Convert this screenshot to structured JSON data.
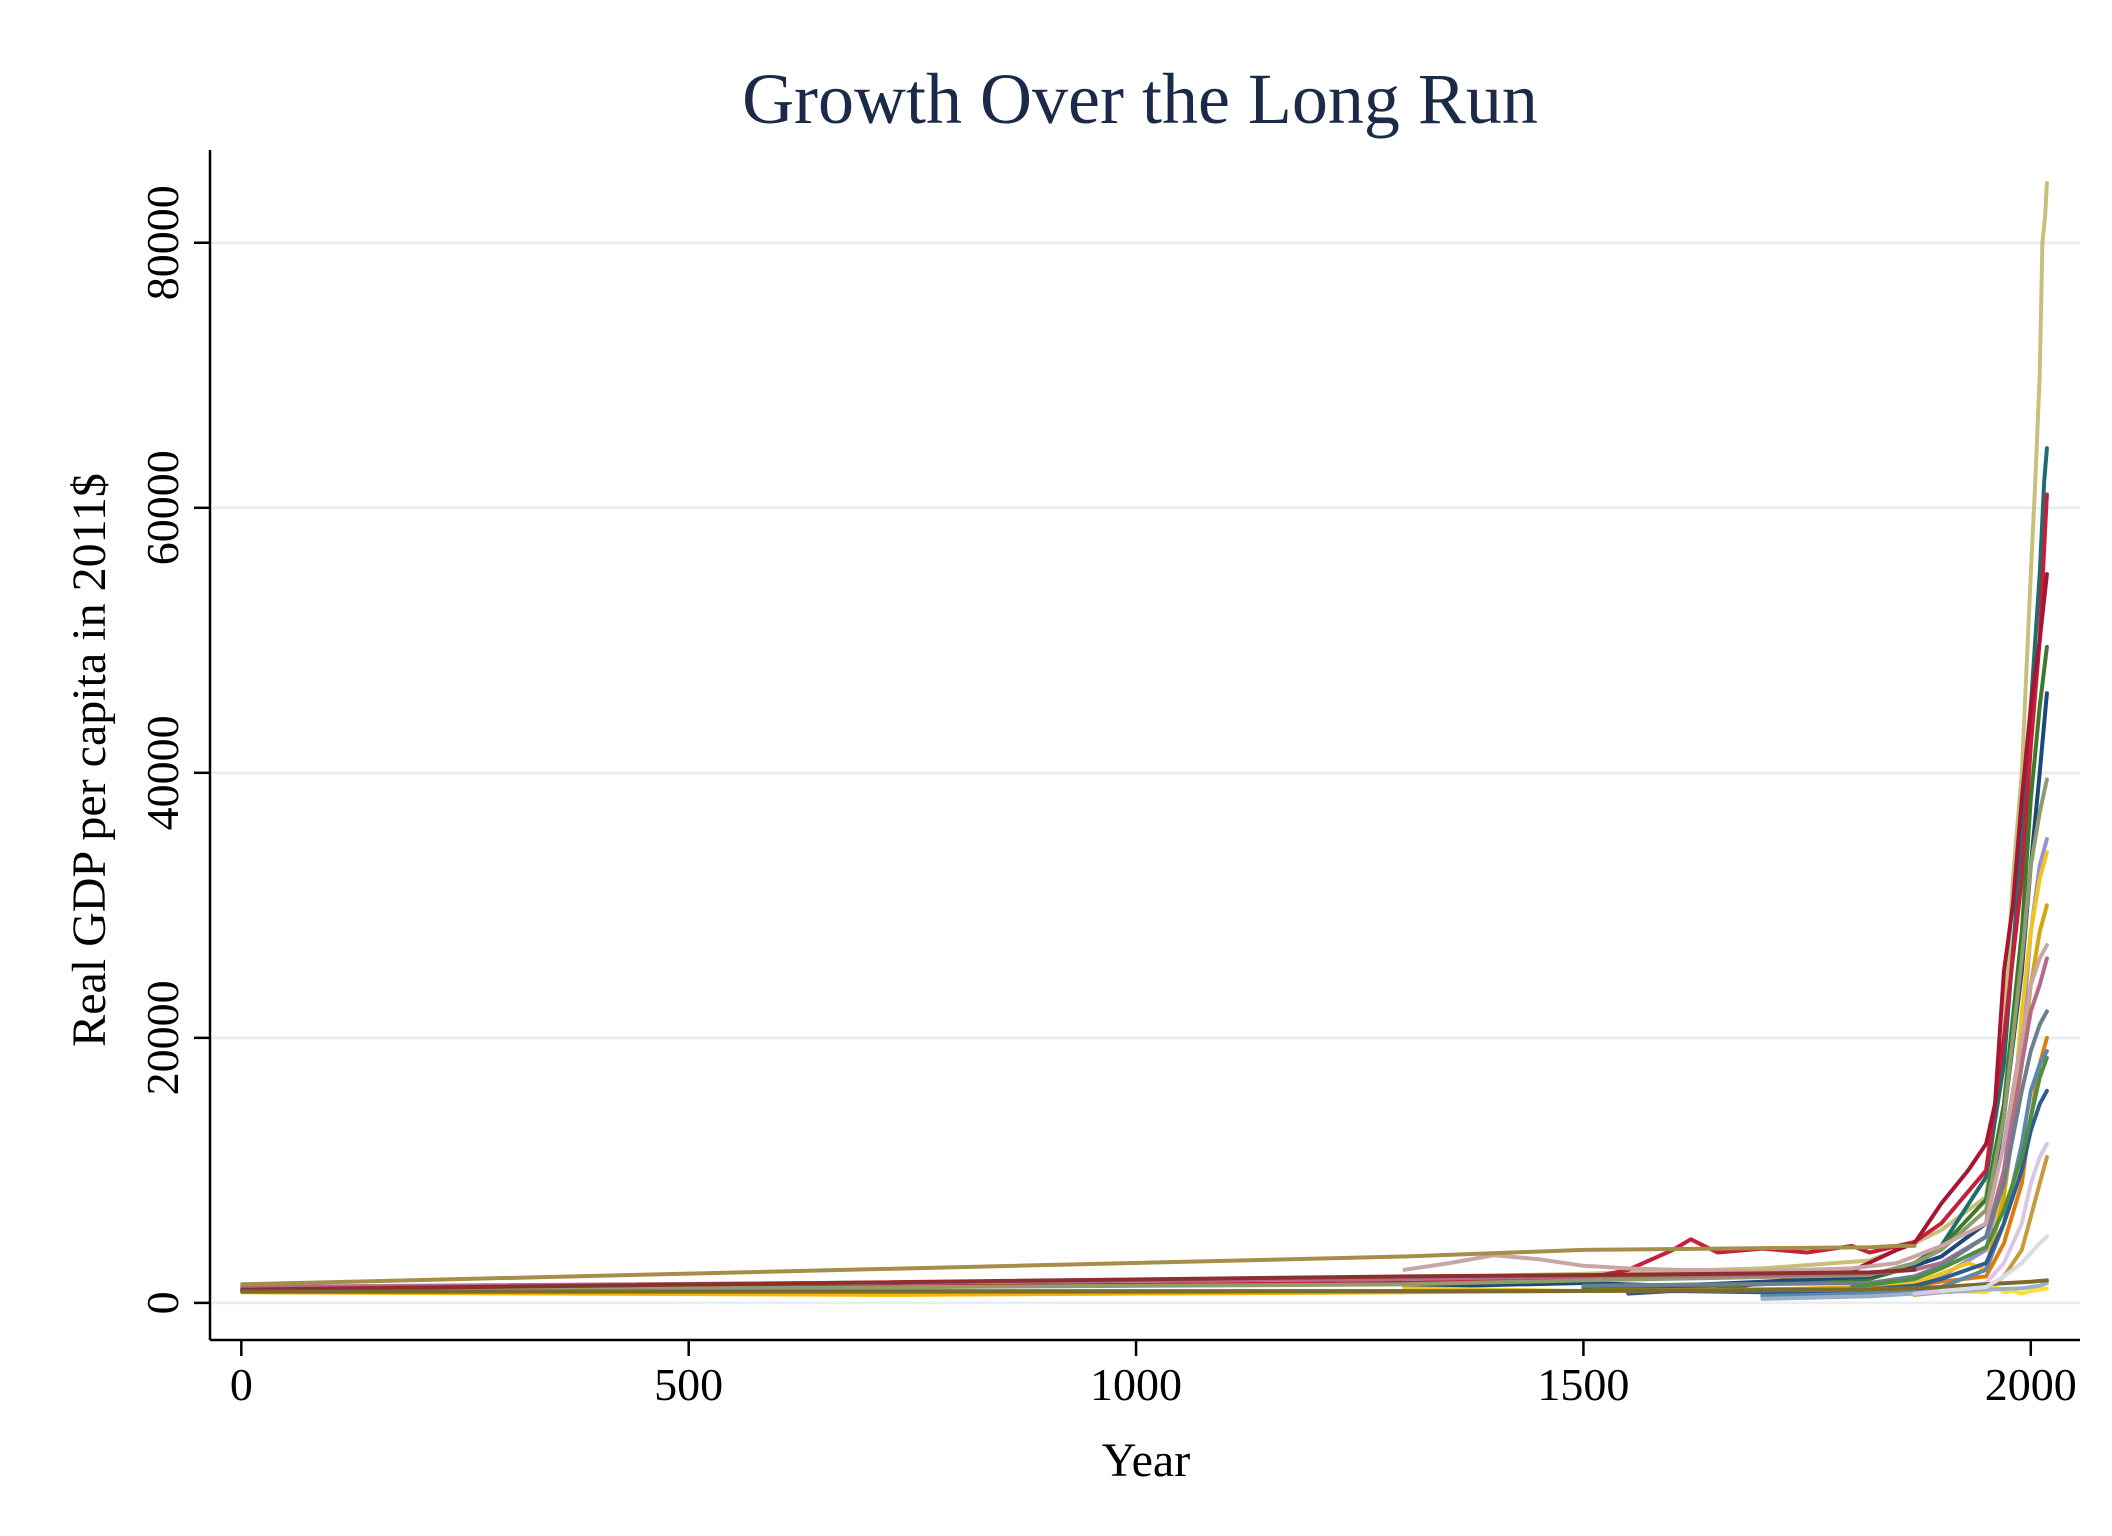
{
  "chart_data": {
    "type": "line",
    "title": "Growth Over the Long Run",
    "xlabel": "Year",
    "ylabel": "Real GDP per capita in 2011$",
    "xlim": [
      -35,
      2055
    ],
    "ylim": [
      -2800,
      87000
    ],
    "x_ticks": [
      0,
      500,
      1000,
      1500,
      2000
    ],
    "y_ticks": [
      0,
      20000,
      40000,
      60000,
      80000
    ],
    "grid": true,
    "legend": "none",
    "series": [
      {
        "color": "#c8c07a",
        "x": [
          1,
          1300,
          1500,
          1700,
          1820,
          1870,
          1900,
          1950,
          1970,
          1980,
          1990,
          2000,
          2005,
          2010,
          2013,
          2016,
          2018
        ],
        "y": [
          1100,
          1900,
          2200,
          2600,
          3200,
          4500,
          5500,
          8000,
          20000,
          32000,
          40000,
          55000,
          62000,
          70000,
          80000,
          82000,
          84500
        ]
      },
      {
        "color": "#1e6e6e",
        "x": [
          1500,
          1700,
          1820,
          1870,
          1900,
          1950,
          1970,
          1990,
          2000,
          2010,
          2015,
          2018
        ],
        "y": [
          1200,
          1500,
          2000,
          3000,
          4300,
          9500,
          18000,
          35000,
          45000,
          55000,
          62000,
          64500
        ]
      },
      {
        "color": "#c41f3b",
        "x": [
          1,
          1300,
          1500,
          1550,
          1600,
          1620,
          1650,
          1700,
          1750,
          1800,
          1820,
          1870,
          1900,
          1950,
          1970,
          1990,
          2000,
          2010,
          2015,
          2018
        ],
        "y": [
          900,
          1500,
          1800,
          2500,
          4000,
          4800,
          3800,
          4100,
          3800,
          4300,
          3800,
          4600,
          6000,
          10000,
          20000,
          32000,
          42000,
          50000,
          57000,
          61000
        ]
      },
      {
        "color": "#a81431",
        "x": [
          1650,
          1700,
          1800,
          1850,
          1870,
          1900,
          1930,
          1950,
          1960,
          1970,
          1980,
          1990,
          2000,
          2010,
          2018
        ],
        "y": [
          1000,
          1500,
          2400,
          4000,
          4500,
          7500,
          10000,
          12000,
          15000,
          25000,
          30000,
          38000,
          45000,
          50000,
          55000
        ]
      },
      {
        "color": "#3d7a2e",
        "x": [
          1500,
          1700,
          1820,
          1870,
          1900,
          1950,
          1970,
          1990,
          2000,
          2010,
          2018
        ],
        "y": [
          1000,
          1400,
          1800,
          2800,
          4200,
          7800,
          15000,
          28000,
          38000,
          45000,
          49500
        ]
      },
      {
        "color": "#1a4a7a",
        "x": [
          1300,
          1500,
          1600,
          1700,
          1820,
          1870,
          1900,
          1950,
          1970,
          1990,
          2000,
          2010,
          2018
        ],
        "y": [
          1200,
          1500,
          1300,
          1600,
          2000,
          2800,
          3500,
          6000,
          14000,
          25000,
          33000,
          40000,
          46000
        ]
      },
      {
        "color": "#8f9c6b",
        "x": [
          1,
          1300,
          1500,
          1820,
          1870,
          1900,
          1950,
          1970,
          1990,
          2000,
          2010,
          2018
        ],
        "y": [
          900,
          1400,
          1700,
          2100,
          3000,
          4000,
          7000,
          14000,
          26000,
          33000,
          37000,
          39500
        ]
      },
      {
        "color": "#9a8fd4",
        "x": [
          1700,
          1820,
          1870,
          1900,
          1950,
          1970,
          1990,
          2000,
          2010,
          2018
        ],
        "y": [
          600,
          1000,
          1500,
          2000,
          4000,
          10000,
          20000,
          28000,
          33000,
          35000
        ]
      },
      {
        "color": "#f2c51e",
        "x": [
          1300,
          1500,
          1700,
          1820,
          1870,
          1900,
          1930,
          1950,
          1960,
          1970,
          1980,
          1990,
          2000,
          2010,
          2018
        ],
        "y": [
          1100,
          900,
          1000,
          1200,
          1500,
          2200,
          3000,
          2500,
          5500,
          9000,
          14000,
          22000,
          28000,
          32000,
          34000
        ]
      },
      {
        "color": "#d4a60f",
        "x": [
          1870,
          1900,
          1950,
          1970,
          1990,
          2000,
          2010,
          2018
        ],
        "y": [
          800,
          1200,
          2500,
          8000,
          18000,
          24000,
          28000,
          30000
        ]
      },
      {
        "color": "#b66a8a",
        "x": [
          1,
          1300,
          1500,
          1700,
          1820,
          1870,
          1900,
          1950,
          1970,
          1990,
          2000,
          2010,
          2018
        ],
        "y": [
          1200,
          1800,
          2000,
          2100,
          2200,
          2500,
          3000,
          5000,
          10000,
          18000,
          22000,
          24000,
          26000
        ]
      },
      {
        "color": "#c9a5a5",
        "x": [
          1300,
          1350,
          1400,
          1450,
          1500,
          1550,
          1600,
          1700,
          1800,
          1850,
          1870,
          1900,
          1950,
          1970,
          1990,
          2000,
          2010,
          2018
        ],
        "y": [
          2500,
          3000,
          3600,
          3300,
          2800,
          2600,
          2500,
          2400,
          2600,
          3000,
          3500,
          4300,
          6000,
          12000,
          20000,
          24000,
          26000,
          27000
        ]
      },
      {
        "color": "#e07b10",
        "x": [
          1,
          1300,
          1500,
          1820,
          1870,
          1900,
          1950,
          1970,
          1990,
          2000,
          2010,
          2018
        ],
        "y": [
          900,
          900,
          900,
          1100,
          1300,
          1600,
          2000,
          4500,
          9000,
          14000,
          18000,
          20000
        ]
      },
      {
        "color": "#a58d4a",
        "x": [
          1,
          1300,
          1500,
          1820,
          1850,
          1870
        ],
        "y": [
          1400,
          3500,
          4000,
          4200,
          4300,
          4300
        ]
      },
      {
        "color": "#8c2f2f",
        "x": [
          1,
          1300,
          1500,
          1820,
          1870
        ],
        "y": [
          1000,
          2000,
          2100,
          2300,
          2500
        ]
      },
      {
        "color": "#5b88b0",
        "x": [
          1700,
          1820,
          1870,
          1900,
          1950,
          1970,
          1990,
          2000,
          2010,
          2018
        ],
        "y": [
          500,
          700,
          900,
          1200,
          2500,
          6000,
          12000,
          16000,
          18000,
          19000
        ]
      },
      {
        "color": "#2e5e8c",
        "x": [
          1550,
          1600,
          1700,
          1820,
          1870,
          1900,
          1950,
          1970,
          1990,
          2000,
          2010,
          2018
        ],
        "y": [
          700,
          900,
          800,
          1000,
          1300,
          1800,
          3000,
          6000,
          10000,
          13000,
          15000,
          16000
        ]
      },
      {
        "color": "#6b7f8f",
        "x": [
          1500,
          1820,
          1870,
          1900,
          1950,
          1970,
          1990,
          2000,
          2010,
          2018
        ],
        "y": [
          1300,
          1500,
          2000,
          2800,
          5000,
          9000,
          16000,
          19000,
          21000,
          22000
        ]
      },
      {
        "color": "#4f8f3f",
        "x": [
          1800,
          1870,
          1900,
          1950,
          1970,
          1990,
          2000,
          2010,
          2018
        ],
        "y": [
          1200,
          1800,
          2600,
          4200,
          7000,
          11000,
          14000,
          17000,
          18500
        ]
      },
      {
        "color": "#c89b3c",
        "x": [
          1870,
          1900,
          1950,
          1970,
          1990,
          2000,
          2010,
          2018
        ],
        "y": [
          600,
          800,
          1000,
          2000,
          4000,
          6500,
          9000,
          11000
        ]
      },
      {
        "color": "#ffe033",
        "x": [
          1900,
          1950,
          1960,
          1970,
          1980,
          1990,
          2000,
          2010,
          2018
        ],
        "y": [
          900,
          800,
          1200,
          800,
          900,
          700,
          900,
          1000,
          1100
        ]
      },
      {
        "color": "#9ab0c8",
        "x": [
          1700,
          1820,
          1870,
          1900,
          1950,
          1990,
          2010,
          2018
        ],
        "y": [
          300,
          500,
          700,
          800,
          1000,
          1100,
          1300,
          1500
        ]
      },
      {
        "color": "#d9c7e3",
        "x": [
          1870,
          1900,
          1950,
          1970,
          1990,
          2000,
          2010,
          2018
        ],
        "y": [
          700,
          900,
          1500,
          3000,
          6000,
          9000,
          11000,
          12000
        ]
      },
      {
        "color": "#f7b500",
        "x": [
          1,
          730,
          1000,
          1300,
          1500,
          1820,
          1870
        ],
        "y": [
          800,
          600,
          700,
          800,
          900,
          1000,
          1100
        ]
      },
      {
        "color": "#7d6a2f",
        "x": [
          1,
          1000,
          1500,
          1820,
          1870,
          1900,
          1950,
          2000,
          2018
        ],
        "y": [
          850,
          850,
          900,
          1000,
          1100,
          1200,
          1400,
          1600,
          1700
        ]
      },
      {
        "color": "#d6dde6",
        "x": [
          1900,
          1950,
          1970,
          1990,
          2010,
          2018
        ],
        "y": [
          900,
          1200,
          2000,
          3000,
          4500,
          5000
        ]
      }
    ]
  }
}
